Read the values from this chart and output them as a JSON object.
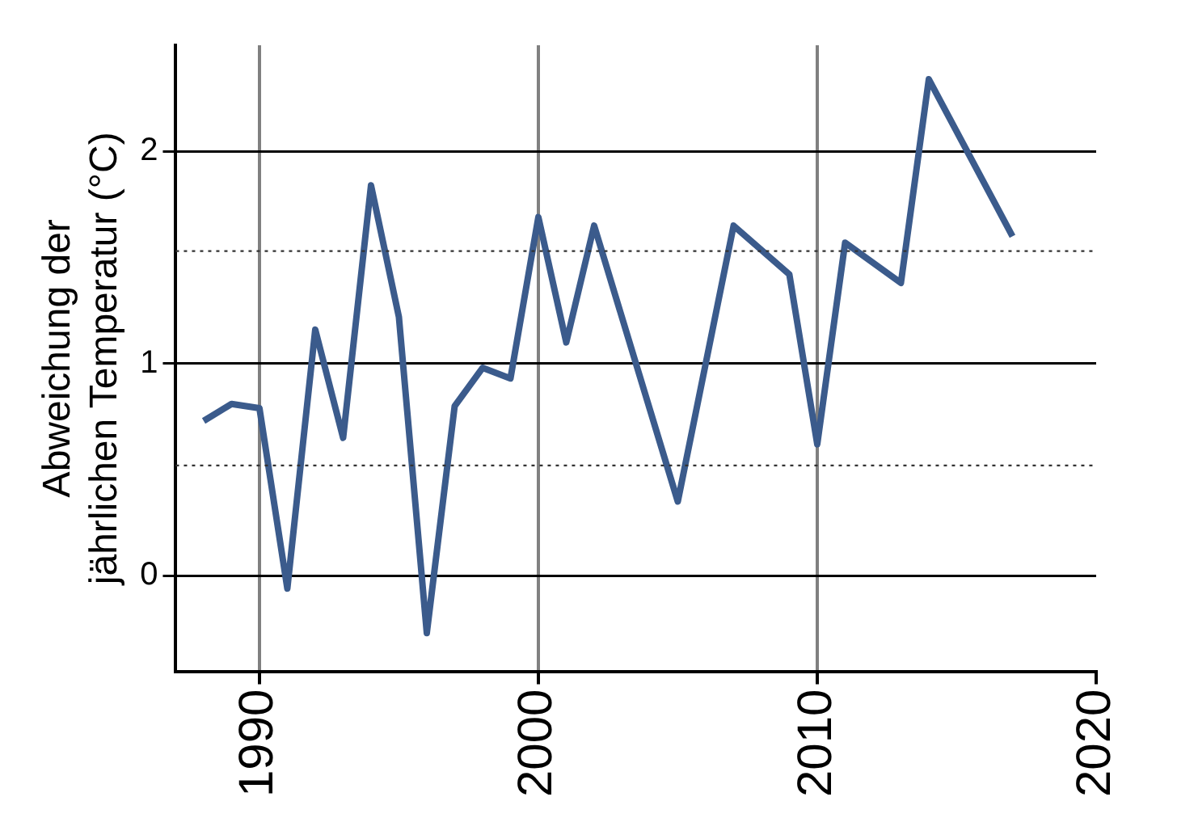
{
  "chart_data": {
    "type": "line",
    "ylabel": "Abweichung der\njährlichen Temperatur (°C)",
    "x": [
      1988,
      1989,
      1990,
      1991,
      1992,
      1993,
      1994,
      1995,
      1996,
      1997,
      1998,
      1999,
      2000,
      2001,
      2002,
      2005,
      2007,
      2009,
      2010,
      2011,
      2013,
      2014,
      2017
    ],
    "series": [
      {
        "color": "#3b5b8c",
        "values": [
          0.73,
          0.81,
          0.79,
          -0.06,
          1.16,
          0.65,
          1.84,
          1.22,
          -0.27,
          0.8,
          0.98,
          0.93,
          1.69,
          1.1,
          1.65,
          0.35,
          1.65,
          1.42,
          0.62,
          1.57,
          1.38,
          2.34,
          1.6
        ]
      }
    ],
    "xlim": [
      1987,
      2020
    ],
    "xticks": [
      1990,
      2000,
      2010,
      2020
    ],
    "ylim": [
      -0.45,
      2.5
    ],
    "yticks": [
      0,
      1,
      2
    ],
    "ref_lines": [
      {
        "axis": "y",
        "value": 0.52,
        "line_style": "dotted"
      },
      {
        "axis": "y",
        "value": 1.53,
        "line_style": "dotted"
      }
    ],
    "grid": true,
    "legend": false,
    "marker": "none",
    "line_style": "solid"
  }
}
